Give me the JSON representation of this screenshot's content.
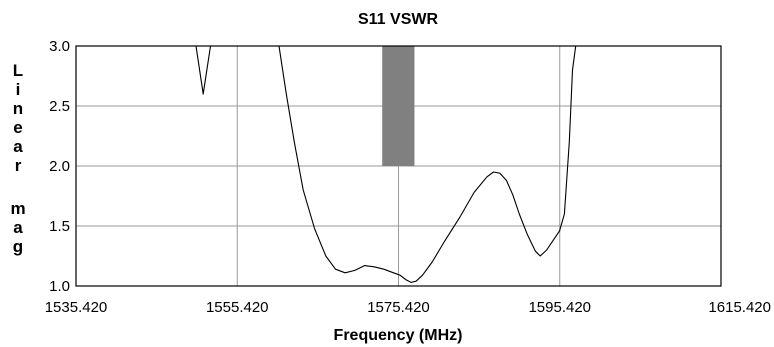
{
  "chart_data": {
    "type": "line",
    "title": "S11   VSWR",
    "xlabel": "Frequency (MHz)",
    "ylabel": "Linear mag",
    "xlim": [
      1535.42,
      1615.42
    ],
    "ylim": [
      1.0,
      3.0
    ],
    "x_ticks": [
      "1535.420",
      "1555.420",
      "1575.420",
      "1595.420",
      "1615.420"
    ],
    "y_ticks": [
      "1.0",
      "1.5",
      "2.0",
      "2.5",
      "3.0"
    ],
    "grid": true,
    "marker_band": {
      "x": [
        1573.4,
        1577.4
      ],
      "y": [
        2.0,
        3.0
      ],
      "color": "#808080"
    },
    "series": [
      {
        "color": "#000000",
        "points": [
          [
            1550.3,
            3.0
          ],
          [
            1551.2,
            2.6
          ],
          [
            1552.1,
            3.0
          ],
          [
            1553.0,
            3.2
          ],
          [
            1559.8,
            3.2
          ],
          [
            1560.6,
            3.0
          ],
          [
            1561.5,
            2.6
          ],
          [
            1562.5,
            2.2
          ],
          [
            1563.6,
            1.8
          ],
          [
            1565.0,
            1.48
          ],
          [
            1566.4,
            1.25
          ],
          [
            1567.6,
            1.14
          ],
          [
            1568.8,
            1.11
          ],
          [
            1570.0,
            1.13
          ],
          [
            1571.2,
            1.17
          ],
          [
            1572.4,
            1.16
          ],
          [
            1573.6,
            1.14
          ],
          [
            1574.8,
            1.11
          ],
          [
            1575.6,
            1.09
          ],
          [
            1576.4,
            1.05
          ],
          [
            1577.0,
            1.03
          ],
          [
            1577.6,
            1.04
          ],
          [
            1578.4,
            1.09
          ],
          [
            1579.6,
            1.2
          ],
          [
            1581.2,
            1.38
          ],
          [
            1583.0,
            1.57
          ],
          [
            1584.8,
            1.78
          ],
          [
            1586.4,
            1.91
          ],
          [
            1587.2,
            1.95
          ],
          [
            1588.0,
            1.94
          ],
          [
            1588.8,
            1.88
          ],
          [
            1589.6,
            1.76
          ],
          [
            1590.4,
            1.6
          ],
          [
            1591.4,
            1.43
          ],
          [
            1592.4,
            1.29
          ],
          [
            1593.0,
            1.25
          ],
          [
            1593.8,
            1.3
          ],
          [
            1594.4,
            1.36
          ],
          [
            1595.4,
            1.46
          ],
          [
            1596.0,
            1.6
          ],
          [
            1596.6,
            2.2
          ],
          [
            1597.0,
            2.8
          ],
          [
            1597.4,
            3.0
          ],
          [
            1597.8,
            3.2
          ]
        ]
      }
    ]
  }
}
